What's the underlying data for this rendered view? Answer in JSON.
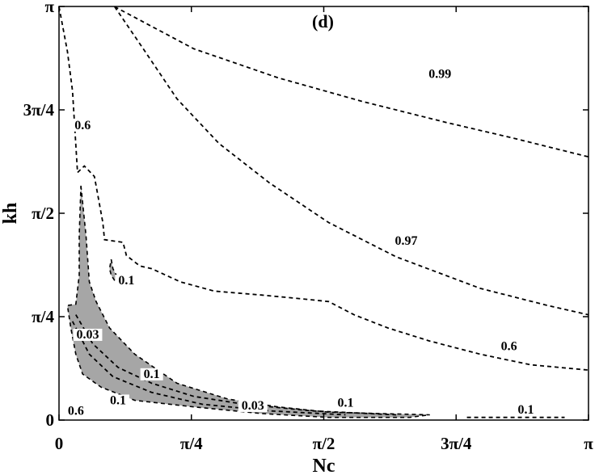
{
  "chart_data": {
    "type": "contour",
    "panel_label": "(d)",
    "xlabel": "Nc",
    "ylabel": "kh",
    "xlim": [
      0,
      3.14159
    ],
    "ylim": [
      0,
      3.14159
    ],
    "x_ticks": [
      {
        "value": 0,
        "label": "0"
      },
      {
        "value": 0.7854,
        "label": "π/4"
      },
      {
        "value": 1.5708,
        "label": "π/2"
      },
      {
        "value": 2.3562,
        "label": "3π/4"
      },
      {
        "value": 3.14159,
        "label": "π"
      }
    ],
    "y_ticks": [
      {
        "value": 0,
        "label": "0"
      },
      {
        "value": 0.7854,
        "label": "π/4"
      },
      {
        "value": 1.5708,
        "label": "π/2"
      },
      {
        "value": 2.3562,
        "label": "3π/4"
      },
      {
        "value": 3.14159,
        "label": "π"
      }
    ],
    "shaded_color": "#a6a6a6",
    "contours": [
      {
        "level": "0.99",
        "points": [
          [
            0.33,
            3.14
          ],
          [
            0.8,
            2.82
          ],
          [
            1.3,
            2.6
          ],
          [
            1.8,
            2.42
          ],
          [
            2.3,
            2.26
          ],
          [
            2.7,
            2.14
          ],
          [
            3.14,
            2.0
          ]
        ]
      },
      {
        "level": "0.97",
        "points": [
          [
            0.33,
            3.14
          ],
          [
            0.5,
            2.82
          ],
          [
            0.7,
            2.44
          ],
          [
            0.95,
            2.1
          ],
          [
            1.25,
            1.8
          ],
          [
            1.6,
            1.5
          ],
          [
            2.0,
            1.24
          ],
          [
            2.5,
            1.0
          ],
          [
            2.9,
            0.87
          ],
          [
            3.14,
            0.8
          ]
        ]
      },
      {
        "level": "0.6",
        "points": [
          [
            0.0,
            3.14
          ],
          [
            0.05,
            2.8
          ],
          [
            0.08,
            2.5
          ],
          [
            0.11,
            1.88
          ],
          [
            0.15,
            1.93
          ],
          [
            0.21,
            1.85
          ],
          [
            0.26,
            1.5
          ],
          [
            0.27,
            1.37
          ],
          [
            0.38,
            1.35
          ],
          [
            0.4,
            1.25
          ],
          [
            0.48,
            1.17
          ],
          [
            0.55,
            1.15
          ],
          [
            0.72,
            1.05
          ],
          [
            0.92,
            0.98
          ],
          [
            1.2,
            0.95
          ],
          [
            1.45,
            0.92
          ],
          [
            1.6,
            0.9
          ],
          [
            1.75,
            0.8
          ],
          [
            1.95,
            0.7
          ],
          [
            2.2,
            0.6
          ],
          [
            2.5,
            0.5
          ],
          [
            2.8,
            0.42
          ],
          [
            3.14,
            0.38
          ]
        ]
      },
      {
        "level": "0.1",
        "points": [
          [
            2.42,
            0.02
          ],
          [
            2.7,
            0.02
          ],
          [
            3.0,
            0.02
          ]
        ]
      }
    ],
    "regions": [
      {
        "level": "shaded",
        "points": [
          [
            0.13,
            1.78
          ],
          [
            0.16,
            1.4
          ],
          [
            0.18,
            1.05
          ],
          [
            0.22,
            0.9
          ],
          [
            0.3,
            0.7
          ],
          [
            0.45,
            0.5
          ],
          [
            0.7,
            0.28
          ],
          [
            1.0,
            0.16
          ],
          [
            1.3,
            0.1
          ],
          [
            1.6,
            0.06
          ],
          [
            1.9,
            0.05
          ],
          [
            2.2,
            0.04
          ],
          [
            2.08,
            0.02
          ],
          [
            1.6,
            0.02
          ],
          [
            1.2,
            0.05
          ],
          [
            0.8,
            0.1
          ],
          [
            0.45,
            0.15
          ],
          [
            0.25,
            0.25
          ],
          [
            0.14,
            0.35
          ],
          [
            0.1,
            0.5
          ],
          [
            0.07,
            0.7
          ],
          [
            0.05,
            0.87
          ],
          [
            0.1,
            0.88
          ],
          [
            0.12,
            1.1
          ],
          [
            0.12,
            1.4
          ]
        ]
      },
      {
        "level": "shaded",
        "points": [
          [
            0.31,
            1.22
          ],
          [
            0.32,
            1.15
          ],
          [
            0.34,
            1.1
          ],
          [
            0.35,
            1.04
          ],
          [
            0.33,
            1.06
          ],
          [
            0.31,
            1.1
          ],
          [
            0.3,
            1.15
          ]
        ]
      }
    ],
    "inner_contours": [
      {
        "level": "0.1",
        "points": [
          [
            0.1,
            0.8
          ],
          [
            0.2,
            0.58
          ],
          [
            0.35,
            0.4
          ],
          [
            0.55,
            0.28
          ],
          [
            0.8,
            0.18
          ],
          [
            1.1,
            0.12
          ],
          [
            1.5,
            0.07
          ],
          [
            2.0,
            0.04
          ]
        ]
      },
      {
        "level": "0.03",
        "points": [
          [
            0.08,
            0.75
          ],
          [
            0.18,
            0.5
          ],
          [
            0.32,
            0.33
          ],
          [
            0.55,
            0.21
          ],
          [
            0.85,
            0.12
          ],
          [
            1.25,
            0.07
          ],
          [
            1.7,
            0.04
          ]
        ]
      }
    ],
    "contour_labels": [
      {
        "text": "0.99",
        "x": 2.26,
        "y": 2.6
      },
      {
        "text": "0.97",
        "x": 2.06,
        "y": 1.33
      },
      {
        "text": "0.6",
        "x": 0.14,
        "y": 2.21
      },
      {
        "text": "0.6",
        "x": 2.67,
        "y": 0.53
      },
      {
        "text": "0.6",
        "x": 0.1,
        "y": 0.04
      },
      {
        "text": "0.1",
        "x": 0.4,
        "y": 1.03
      },
      {
        "text": "0.1",
        "x": 0.55,
        "y": 0.32
      },
      {
        "text": "0.1",
        "x": 0.35,
        "y": 0.12
      },
      {
        "text": "0.1",
        "x": 1.7,
        "y": 0.1
      },
      {
        "text": "0.1",
        "x": 2.77,
        "y": 0.05
      },
      {
        "text": "0.03",
        "x": 0.17,
        "y": 0.62
      },
      {
        "text": "0.03",
        "x": 1.15,
        "y": 0.08
      }
    ]
  }
}
